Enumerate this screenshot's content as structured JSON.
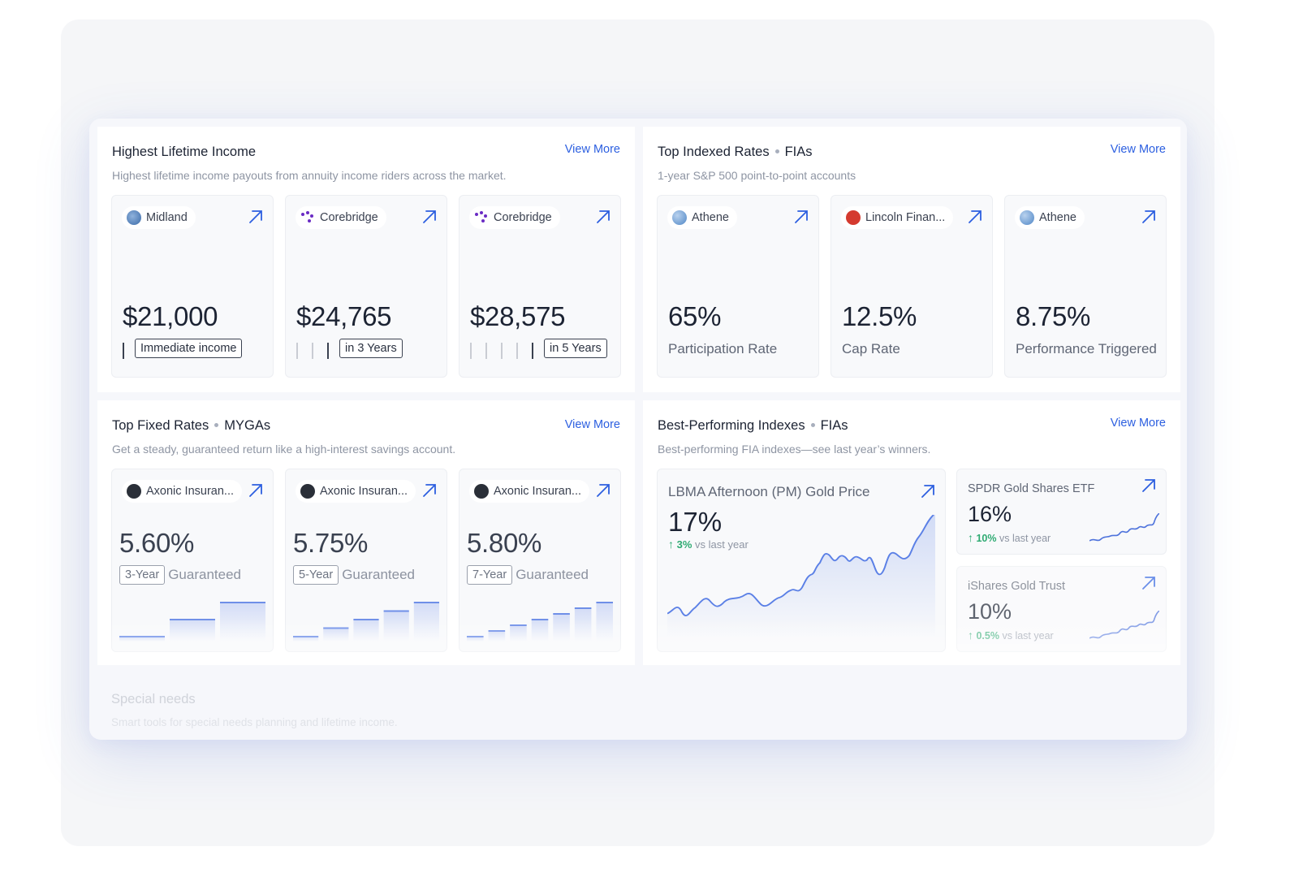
{
  "colors": {
    "accent": "#2c5fe0",
    "positive": "#2eaa72",
    "line": "#5b80e6"
  },
  "lifetime_income": {
    "title": "Highest Lifetime Income",
    "view_more": "View More",
    "subtitle": "Highest lifetime income payouts from annuity income riders across the market.",
    "cards": [
      {
        "carrier": "Midland",
        "logo": "midland-logo",
        "value": "$21,000",
        "tag": "Immediate income",
        "years_waited": 0
      },
      {
        "carrier": "Corebridge",
        "logo": "corebridge-logo",
        "value": "$24,765",
        "tag": "in 3 Years",
        "years_waited": 3
      },
      {
        "carrier": "Corebridge",
        "logo": "corebridge-logo",
        "value": "$28,575",
        "tag": "in 5 Years",
        "years_waited": 5
      }
    ]
  },
  "indexed_rates": {
    "title": "Top Indexed Rates",
    "category": "FIAs",
    "view_more": "View More",
    "subtitle": "1-year S&P 500 point-to-point accounts",
    "cards": [
      {
        "carrier": "Athene",
        "logo": "athene-logo",
        "value": "65%",
        "label": "Participation Rate"
      },
      {
        "carrier": "Lincoln Finan...",
        "logo": "lincoln-logo",
        "value": "12.5%",
        "label": "Cap Rate"
      },
      {
        "carrier": "Athene",
        "logo": "athene-logo",
        "value": "8.75%",
        "label": "Performance Triggered"
      }
    ]
  },
  "fixed_rates": {
    "title": "Top Fixed Rates",
    "category": "MYGAs",
    "view_more": "View More",
    "subtitle": "Get a steady, guaranteed return like a high-interest savings account.",
    "guaranteed_label": "Guaranteed",
    "cards": [
      {
        "carrier": "Axonic Insuran...",
        "logo": "axonic-logo",
        "value": "5.60%",
        "term": "3-Year",
        "years": 3
      },
      {
        "carrier": "Axonic Insuran...",
        "logo": "axonic-logo",
        "value": "5.75%",
        "term": "5-Year",
        "years": 5
      },
      {
        "carrier": "Axonic Insuran...",
        "logo": "axonic-logo",
        "value": "5.80%",
        "term": "7-Year",
        "years": 7
      }
    ]
  },
  "best_indexes": {
    "title": "Best-Performing Indexes",
    "category": "FIAs",
    "view_more": "View More",
    "subtitle": "Best-performing FIA indexes—see last year’s winners.",
    "vs_label": "vs last year",
    "featured": {
      "name": "LBMA Afternoon (PM) Gold Price",
      "value": "17%",
      "delta": "3%"
    },
    "others": [
      {
        "name": "SPDR Gold Shares ETF",
        "value": "16%",
        "delta": "10%"
      },
      {
        "name": "iShares Gold Trust",
        "value": "10%",
        "delta": "0.5%"
      }
    ]
  },
  "special_needs": {
    "title": "Special needs",
    "subtitle": "Smart tools for special needs planning and lifetime income."
  }
}
